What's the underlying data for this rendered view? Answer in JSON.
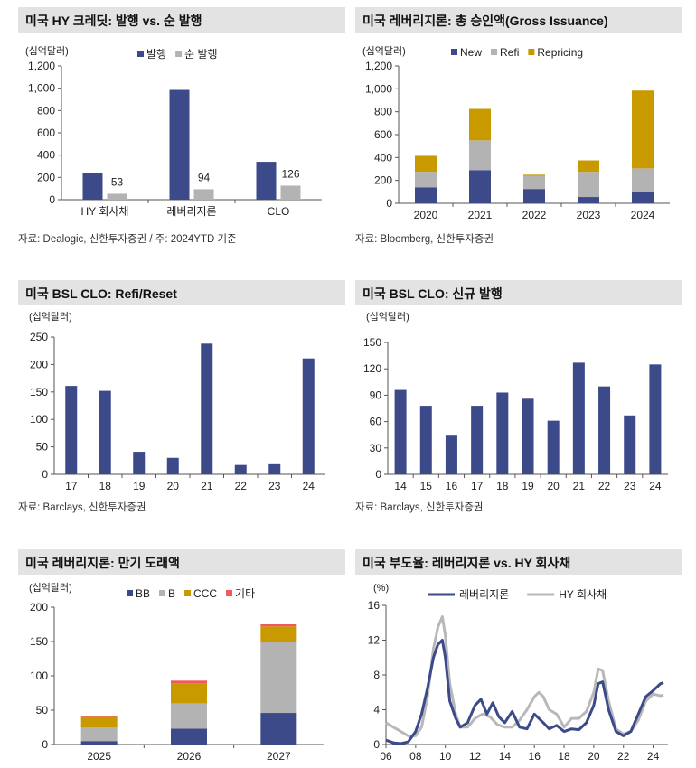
{
  "colors": {
    "navy": "#3c4a8a",
    "gray": "#b3b3b3",
    "gold": "#c89a00",
    "red": "#f05a5a",
    "series_gray": "#b8b8b8"
  },
  "panels": [
    {
      "title": "미국 HY 크레딧: 발행 vs. 순 발행",
      "source": "자료: Dealogic, 신한투자증권 / 주: 2024YTD 기준",
      "chart_data": {
        "type": "bar",
        "unit": "(십억달러)",
        "categories": [
          "HY 회사채",
          "레버리지론",
          "CLO"
        ],
        "series": [
          {
            "name": "발행",
            "values": [
              240,
              985,
              340
            ],
            "color": "#3c4a8a"
          },
          {
            "name": "순 발행",
            "values": [
              53,
              94,
              126
            ],
            "color": "#b3b3b3",
            "data_labels": [
              "53",
              "94",
              "126"
            ]
          }
        ],
        "ylim": [
          0,
          1200
        ],
        "yticks": [
          "0",
          "200",
          "400",
          "600",
          "800",
          "1,000",
          "1,200"
        ],
        "legend": "top-center"
      }
    },
    {
      "title": "미국 레버리지론: 총 승인액(Gross Issuance)",
      "source": "자료: Bloomberg, 신한투자증권",
      "chart_data": {
        "type": "bar",
        "stacked": true,
        "unit": "(십억달러)",
        "categories": [
          "2020",
          "2021",
          "2022",
          "2023",
          "2024"
        ],
        "series": [
          {
            "name": "New",
            "values": [
              140,
              290,
              125,
              55,
              95
            ],
            "color": "#3c4a8a"
          },
          {
            "name": "Refi",
            "values": [
              135,
              260,
              115,
              220,
              210
            ],
            "color": "#b3b3b3"
          },
          {
            "name": "Repricing",
            "values": [
              140,
              275,
              10,
              100,
              680
            ],
            "color": "#c89a00"
          }
        ],
        "ylim": [
          0,
          1200
        ],
        "yticks": [
          "0",
          "200",
          "400",
          "600",
          "800",
          "1,000",
          "1,200"
        ],
        "legend": "top-left"
      }
    },
    {
      "title": "미국 BSL CLO: Refi/Reset",
      "source": "자료: Barclays, 신한투자증권",
      "chart_data": {
        "type": "bar",
        "unit": "(십억달러)",
        "categories": [
          "17",
          "18",
          "19",
          "20",
          "21",
          "22",
          "23",
          "24"
        ],
        "series": [
          {
            "name": "",
            "values": [
              161,
              152,
              41,
              30,
              238,
              17,
              20,
              211
            ],
            "color": "#3c4a8a"
          }
        ],
        "ylim": [
          0,
          250
        ],
        "yticks": [
          "0",
          "50",
          "100",
          "150",
          "200",
          "250"
        ]
      }
    },
    {
      "title": "미국 BSL CLO: 신규 발행",
      "source": "자료: Barclays, 신한투자증권",
      "chart_data": {
        "type": "bar",
        "unit": "(십억달러)",
        "categories": [
          "14",
          "15",
          "16",
          "17",
          "18",
          "19",
          "20",
          "21",
          "22",
          "23",
          "24"
        ],
        "series": [
          {
            "name": "",
            "values": [
              96,
              78,
              45,
              78,
              93,
              86,
              61,
              127,
              100,
              67,
              125
            ],
            "color": "#3c4a8a"
          }
        ],
        "ylim": [
          0,
          150
        ],
        "yticks": [
          "0",
          "30",
          "60",
          "90",
          "120",
          "150"
        ]
      }
    },
    {
      "title": "미국 레버리지론: 만기 도래액",
      "source": "",
      "chart_data": {
        "type": "bar",
        "stacked": true,
        "unit": "(십억달러)",
        "categories": [
          "2025",
          "2026",
          "2027"
        ],
        "series": [
          {
            "name": "BB",
            "values": [
              5,
              23,
              46
            ],
            "color": "#3c4a8a"
          },
          {
            "name": "B",
            "values": [
              20,
              37,
              103
            ],
            "color": "#b3b3b3"
          },
          {
            "name": "CCC",
            "values": [
              15,
              29,
              23
            ],
            "color": "#c89a00"
          },
          {
            "name": "기타",
            "values": [
              2,
              4,
              3
            ],
            "color": "#f05a5a"
          }
        ],
        "ylim": [
          0,
          200
        ],
        "yticks": [
          "0",
          "50",
          "100",
          "150",
          "200"
        ],
        "legend": "top-center"
      }
    },
    {
      "title": "미국 부도율: 레버리지론 vs. HY 회사채",
      "source": "",
      "chart_data": {
        "type": "line",
        "unit": "(%)",
        "xlim": [
          2006,
          2025
        ],
        "ylim": [
          0,
          16
        ],
        "xticks": [
          "06",
          "08",
          "10",
          "12",
          "14",
          "16",
          "18",
          "20",
          "22",
          "24"
        ],
        "yticks": [
          "0",
          "4",
          "8",
          "12",
          "16"
        ],
        "legend": "top-center",
        "series": [
          {
            "name": "레버리지론",
            "color": "#3c4a8a",
            "x": [
              2006.0,
              2006.5,
              2007.0,
              2007.5,
              2008.0,
              2008.4,
              2008.8,
              2009.2,
              2009.5,
              2009.8,
              2010.0,
              2010.3,
              2010.7,
              2011.0,
              2011.5,
              2012.0,
              2012.4,
              2012.8,
              2013.2,
              2013.6,
              2014.0,
              2014.5,
              2015.0,
              2015.5,
              2016.0,
              2016.3,
              2016.6,
              2017.0,
              2017.5,
              2018.0,
              2018.5,
              2019.0,
              2019.5,
              2020.0,
              2020.3,
              2020.6,
              2021.0,
              2021.5,
              2022.0,
              2022.5,
              2023.0,
              2023.5,
              2024.0,
              2024.5,
              2024.7
            ],
            "y": [
              0.5,
              0.2,
              0.1,
              0.3,
              1.5,
              3.5,
              6.5,
              10,
              11.5,
              12,
              10,
              5,
              3,
              2,
              2.5,
              4.5,
              5.2,
              3.5,
              4.8,
              3.2,
              2.5,
              3.8,
              2,
              1.8,
              3.5,
              3,
              2.5,
              1.8,
              2.2,
              1.5,
              1.8,
              1.7,
              2.5,
              4.5,
              7,
              7.2,
              4,
              1.5,
              1,
              1.5,
              3.5,
              5.5,
              6.2,
              7,
              7.1
            ]
          },
          {
            "name": "HY 회사채",
            "color": "#b8b8b8",
            "x": [
              2006.0,
              2006.5,
              2007.0,
              2007.5,
              2008.0,
              2008.4,
              2008.8,
              2009.2,
              2009.5,
              2009.8,
              2010.0,
              2010.3,
              2010.7,
              2011.0,
              2011.5,
              2012.0,
              2012.5,
              2013.0,
              2013.5,
              2014.0,
              2014.5,
              2015.0,
              2015.5,
              2016.0,
              2016.3,
              2016.6,
              2017.0,
              2017.5,
              2018.0,
              2018.5,
              2019.0,
              2019.5,
              2020.0,
              2020.3,
              2020.6,
              2021.0,
              2021.5,
              2022.0,
              2022.5,
              2023.0,
              2023.5,
              2024.0,
              2024.5,
              2024.7
            ],
            "y": [
              2.5,
              2,
              1.5,
              1,
              1,
              2,
              5.5,
              11,
              13.5,
              14.7,
              12.5,
              7,
              3.5,
              2,
              2,
              3,
              3.5,
              3.2,
              2.3,
              2,
              2,
              2.8,
              4,
              5.5,
              6,
              5.5,
              4,
              3.5,
              2,
              3,
              3,
              3.8,
              6,
              8.7,
              8.5,
              5,
              1.8,
              1.2,
              1.5,
              2.8,
              5,
              5.8,
              5.6,
              5.7
            ]
          }
        ]
      }
    }
  ]
}
